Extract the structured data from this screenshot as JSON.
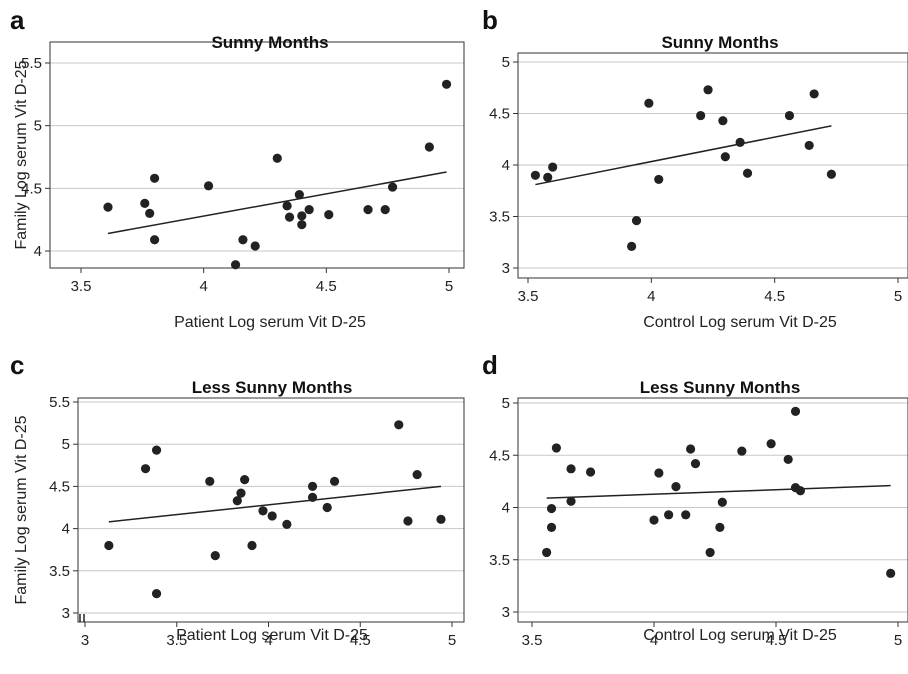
{
  "chart_data": [
    {
      "panel": "a",
      "type": "scatter",
      "title": "Sunny Months",
      "xlabel": "Patient Log serum Vit D-25",
      "ylabel": "Family Log serum Vit D-25",
      "xlim": [
        3.5,
        5.02
      ],
      "ylim": [
        3.88,
        5.55
      ],
      "xticks": [
        "3.5",
        "4",
        "4.5",
        "5"
      ],
      "yticks": [
        "4",
        "4.5",
        "5",
        "5.5"
      ],
      "grid": "horizontal",
      "points": [
        [
          3.61,
          4.35
        ],
        [
          3.76,
          4.38
        ],
        [
          3.78,
          4.3
        ],
        [
          3.8,
          4.58
        ],
        [
          3.8,
          4.09
        ],
        [
          4.02,
          4.52
        ],
        [
          4.13,
          3.89
        ],
        [
          4.16,
          4.09
        ],
        [
          4.21,
          4.04
        ],
        [
          4.3,
          4.74
        ],
        [
          4.34,
          4.36
        ],
        [
          4.35,
          4.27
        ],
        [
          4.39,
          4.45
        ],
        [
          4.4,
          4.28
        ],
        [
          4.4,
          4.21
        ],
        [
          4.43,
          4.33
        ],
        [
          4.51,
          4.29
        ],
        [
          4.67,
          4.33
        ],
        [
          4.74,
          4.33
        ],
        [
          4.77,
          4.51
        ],
        [
          4.92,
          4.83
        ],
        [
          4.99,
          5.33
        ]
      ],
      "fit": [
        [
          3.61,
          4.14
        ],
        [
          4.99,
          4.63
        ]
      ]
    },
    {
      "panel": "b",
      "type": "scatter",
      "title": "Sunny Months",
      "xlabel": "Control Log serum Vit D-25",
      "ylabel": "",
      "xlim": [
        3.5,
        5.02
      ],
      "ylim": [
        2.93,
        5.02
      ],
      "xticks": [
        "3.5",
        "4",
        "4.5",
        "5"
      ],
      "yticks": [
        "3",
        "3.5",
        "4",
        "4.5",
        "5"
      ],
      "grid": "horizontal",
      "points": [
        [
          3.53,
          3.9
        ],
        [
          3.58,
          3.88
        ],
        [
          3.6,
          3.98
        ],
        [
          3.92,
          3.21
        ],
        [
          3.94,
          3.46
        ],
        [
          3.99,
          4.6
        ],
        [
          4.03,
          3.86
        ],
        [
          4.2,
          4.48
        ],
        [
          4.23,
          4.73
        ],
        [
          4.29,
          4.43
        ],
        [
          4.3,
          4.08
        ],
        [
          4.36,
          4.22
        ],
        [
          4.39,
          3.92
        ],
        [
          4.56,
          4.48
        ],
        [
          4.64,
          4.19
        ],
        [
          4.66,
          4.69
        ],
        [
          4.73,
          3.91
        ]
      ],
      "fit": [
        [
          3.53,
          3.81
        ],
        [
          4.73,
          4.38
        ]
      ]
    },
    {
      "panel": "c",
      "type": "scatter",
      "title": "Less Sunny Months",
      "xlabel": "Patient Log serum Vit D-25",
      "ylabel": "Family Log serum Vit D-25",
      "xlim": [
        2.98,
        5.02
      ],
      "ylim": [
        2.97,
        5.52
      ],
      "xticks": [
        "3",
        "3.5",
        "4",
        "4.5",
        "5"
      ],
      "yticks": [
        "3",
        "3.5",
        "4",
        "4.5",
        "5",
        "5.5"
      ],
      "grid": "horizontal",
      "points": [
        [
          3.13,
          3.8
        ],
        [
          3.33,
          4.71
        ],
        [
          3.39,
          4.93
        ],
        [
          3.39,
          3.23
        ],
        [
          3.68,
          4.56
        ],
        [
          3.71,
          3.68
        ],
        [
          3.83,
          4.33
        ],
        [
          3.85,
          4.42
        ],
        [
          3.87,
          4.58
        ],
        [
          3.91,
          3.8
        ],
        [
          3.97,
          4.21
        ],
        [
          4.02,
          4.15
        ],
        [
          4.1,
          4.05
        ],
        [
          4.24,
          4.5
        ],
        [
          4.24,
          4.37
        ],
        [
          4.32,
          4.25
        ],
        [
          4.36,
          4.56
        ],
        [
          4.71,
          5.23
        ],
        [
          4.76,
          4.09
        ],
        [
          4.81,
          4.64
        ],
        [
          4.94,
          4.11
        ]
      ],
      "fit": [
        [
          3.13,
          4.08
        ],
        [
          4.94,
          4.5
        ]
      ]
    },
    {
      "panel": "d",
      "type": "scatter",
      "title": "Less Sunny Months",
      "xlabel": "Control Log serum Vit D-25",
      "ylabel": "",
      "xlim": [
        3.47,
        5.05
      ],
      "ylim": [
        2.97,
        5.02
      ],
      "xticks": [
        "3.5",
        "4",
        "4.5",
        "5"
      ],
      "yticks": [
        "3",
        "3.5",
        "4",
        "4.5",
        "5"
      ],
      "grid": "horizontal",
      "points": [
        [
          3.56,
          3.57
        ],
        [
          3.58,
          3.99
        ],
        [
          3.58,
          3.81
        ],
        [
          3.6,
          4.57
        ],
        [
          3.66,
          4.37
        ],
        [
          3.66,
          4.06
        ],
        [
          3.74,
          4.34
        ],
        [
          4.0,
          3.88
        ],
        [
          4.02,
          4.33
        ],
        [
          4.06,
          3.93
        ],
        [
          4.09,
          4.2
        ],
        [
          4.13,
          3.93
        ],
        [
          4.15,
          4.56
        ],
        [
          4.17,
          4.42
        ],
        [
          4.23,
          3.57
        ],
        [
          4.27,
          3.81
        ],
        [
          4.28,
          4.05
        ],
        [
          4.36,
          4.54
        ],
        [
          4.48,
          4.61
        ],
        [
          4.55,
          4.46
        ],
        [
          4.58,
          4.92
        ],
        [
          4.58,
          4.19
        ],
        [
          4.6,
          4.16
        ],
        [
          4.97,
          3.37
        ]
      ],
      "fit": [
        [
          3.56,
          4.09
        ],
        [
          4.97,
          4.21
        ]
      ]
    }
  ]
}
